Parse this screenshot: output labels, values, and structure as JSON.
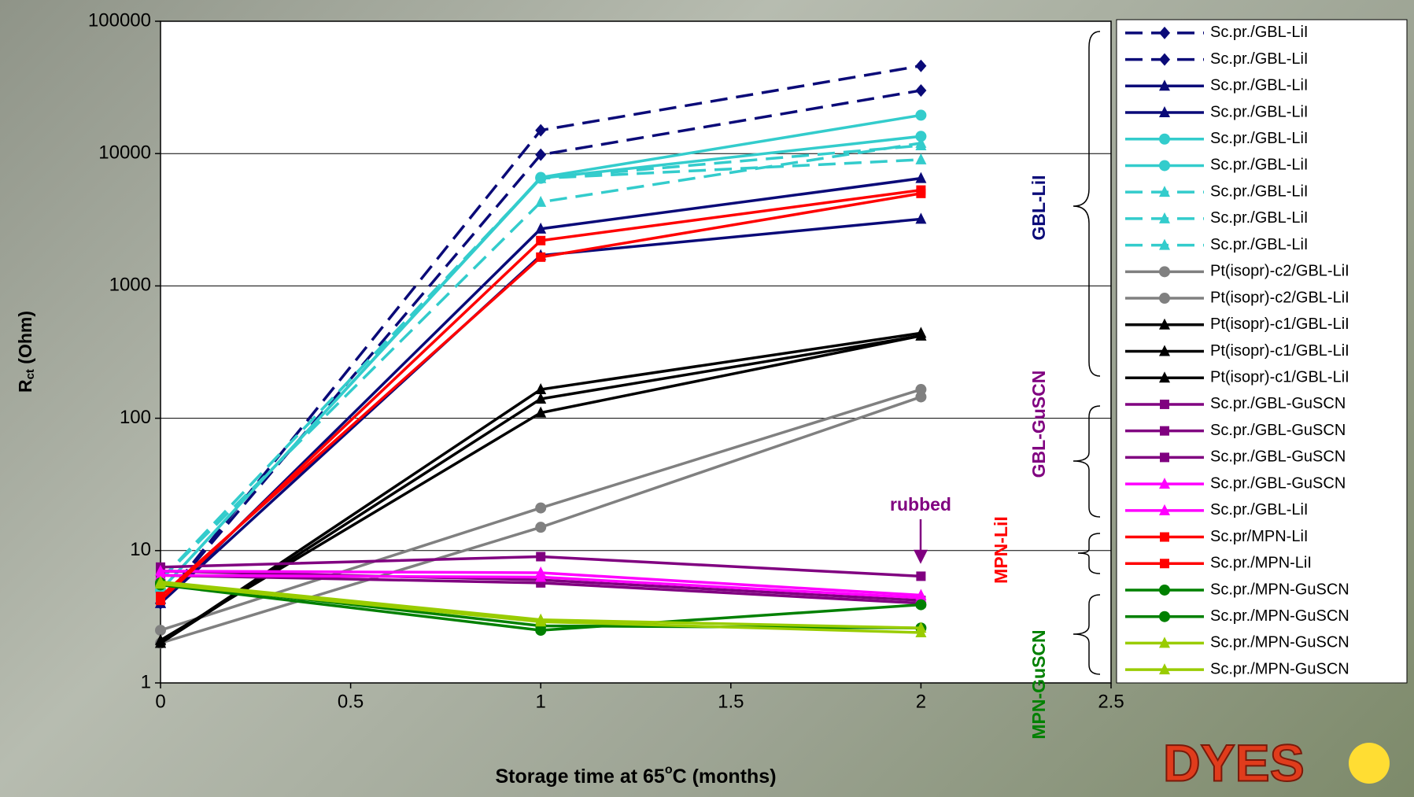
{
  "chart_data": {
    "type": "line",
    "y_label": "R",
    "y_label_sub": "ct",
    "y_label_rest": " (Ohm)",
    "x_label": "Storage time at 65",
    "x_label_sup": "o",
    "x_label_rest": "C (months)",
    "x": [
      0,
      1,
      2
    ],
    "xlim": [
      0,
      2.5
    ],
    "xticks": [
      0,
      0.5,
      1,
      1.5,
      2,
      2.5
    ],
    "ylim": [
      1,
      100000
    ],
    "yticks": [
      1,
      10,
      100,
      1000,
      10000,
      100000
    ],
    "log_y": true,
    "grid": true,
    "legend_position": "right",
    "series": [
      {
        "name": "Sc.pr./GBL-LiI",
        "color": "#0a0a78",
        "marker": "diamond",
        "dash": true,
        "values": [
          4,
          15000,
          46000
        ]
      },
      {
        "name": "Sc.pr./GBL-LiI",
        "color": "#0a0a78",
        "marker": "diamond",
        "dash": true,
        "values": [
          4,
          9800,
          30000
        ]
      },
      {
        "name": "Sc.pr./GBL-LiI",
        "color": "#0a0a78",
        "marker": "triangle",
        "dash": false,
        "values": [
          4,
          2700,
          6500
        ]
      },
      {
        "name": "Sc.pr./GBL-LiI",
        "color": "#0a0a78",
        "marker": "triangle",
        "dash": false,
        "values": [
          4,
          1700,
          3200
        ]
      },
      {
        "name": "Sc.pr./GBL-LiI",
        "color": "#33cccc",
        "marker": "circle",
        "dash": false,
        "values": [
          5,
          6600,
          19500
        ]
      },
      {
        "name": "Sc.pr./GBL-LiI",
        "color": "#33cccc",
        "marker": "circle",
        "dash": false,
        "values": [
          5,
          6500,
          13500
        ]
      },
      {
        "name": "Sc.pr./GBL-LiI",
        "color": "#33cccc",
        "marker": "triangle",
        "dash": true,
        "values": [
          6,
          4300,
          12000
        ]
      },
      {
        "name": "Sc.pr./GBL-LiI",
        "color": "#33cccc",
        "marker": "triangle",
        "dash": true,
        "values": [
          6,
          6500,
          9000
        ]
      },
      {
        "name": "Sc.pr./GBL-LiI",
        "color": "#33cccc",
        "marker": "triangle",
        "dash": true,
        "values": [
          6,
          6500,
          11500
        ]
      },
      {
        "name": "Pt(isopr)-c2/GBL-LiI",
        "color": "#808080",
        "marker": "circle",
        "dash": false,
        "values": [
          2.5,
          21,
          165
        ]
      },
      {
        "name": "Pt(isopr)-c2/GBL-LiI",
        "color": "#808080",
        "marker": "circle",
        "dash": false,
        "values": [
          2,
          15,
          145
        ]
      },
      {
        "name": "Pt(isopr)-c1/GBL-LiI",
        "color": "#000000",
        "marker": "triangle",
        "dash": false,
        "values": [
          2,
          165,
          440
        ]
      },
      {
        "name": "Pt(isopr)-c1/GBL-LiI",
        "color": "#000000",
        "marker": "triangle",
        "dash": false,
        "values": [
          2,
          140,
          420
        ]
      },
      {
        "name": "Pt(isopr)-c1/GBL-LiI",
        "color": "#000000",
        "marker": "triangle",
        "dash": false,
        "values": [
          2.1,
          110,
          420
        ]
      },
      {
        "name": "Sc.pr./GBL-GuSCN",
        "color": "#800080",
        "marker": "square",
        "dash": false,
        "values": [
          7.5,
          9,
          6.4
        ]
      },
      {
        "name": "Sc.pr./GBL-GuSCN",
        "color": "#800080",
        "marker": "square",
        "dash": false,
        "values": [
          7,
          6,
          4.2
        ]
      },
      {
        "name": "Sc.pr./GBL-GuSCN",
        "color": "#800080",
        "marker": "square",
        "dash": false,
        "values": [
          6.5,
          5.7,
          4
        ]
      },
      {
        "name": "Sc.pr./GBL-GuSCN",
        "color": "#ff00ff",
        "marker": "triangle",
        "dash": false,
        "values": [
          7,
          6.8,
          4.6
        ]
      },
      {
        "name": "Sc.pr./GBL-LiI",
        "color": "#ff00ff",
        "marker": "triangle",
        "dash": false,
        "values": [
          6.5,
          6.3,
          4.4
        ]
      },
      {
        "name": "Sc.pr/MPN-LiI",
        "color": "#ff0000",
        "marker": "square",
        "dash": false,
        "values": [
          4.2,
          2200,
          5300
        ]
      },
      {
        "name": "Sc.pr./MPN-LiI",
        "color": "#ff0000",
        "marker": "square",
        "dash": false,
        "values": [
          4.5,
          1650,
          5000
        ]
      },
      {
        "name": "Sc.pr./MPN-GuSCN",
        "color": "#008000",
        "marker": "circle",
        "dash": false,
        "values": [
          5.5,
          2.5,
          3.9
        ]
      },
      {
        "name": "Sc.pr./MPN-GuSCN",
        "color": "#008000",
        "marker": "circle",
        "dash": false,
        "values": [
          5.7,
          2.7,
          2.6
        ]
      },
      {
        "name": "Sc.pr./MPN-GuSCN",
        "color": "#99cc00",
        "marker": "triangle",
        "dash": false,
        "values": [
          5.8,
          3,
          2.6
        ]
      },
      {
        "name": "Sc.pr./MPN-GuSCN",
        "color": "#99cc00",
        "marker": "triangle",
        "dash": false,
        "values": [
          5.6,
          2.9,
          2.4
        ]
      }
    ],
    "annotations": [
      "GBL-LiI",
      "GBL-GuSCN",
      "MPN-LiI",
      "MPN-GuSCN",
      "rubbed"
    ],
    "logo_text": "DYES"
  }
}
